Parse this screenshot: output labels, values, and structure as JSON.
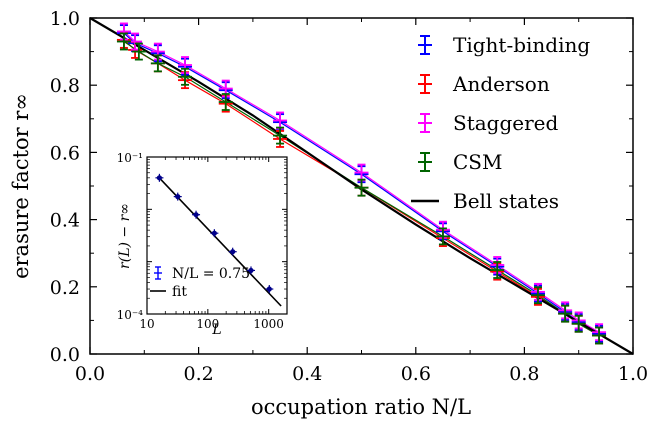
{
  "chart_data": [
    {
      "type": "scatter",
      "title": "",
      "xlabel": "occupation ratio N/L",
      "ylabel": "erasure factor r∞",
      "xlim": [
        0.0,
        1.0
      ],
      "ylim": [
        0.0,
        1.0
      ],
      "xticks": [
        "0.0",
        "0.2",
        "0.4",
        "0.6",
        "0.8",
        "1.0"
      ],
      "yticks": [
        "0.0",
        "0.2",
        "0.4",
        "0.6",
        "0.8",
        "1.0"
      ],
      "legend_position": "top-right",
      "grid": false,
      "series": [
        {
          "name": "Tight-binding",
          "color": "#0000ff",
          "marker": "errorbar",
          "x": [
            0.0625,
            0.083,
            0.125,
            0.175,
            0.25,
            0.35,
            0.5,
            0.65,
            0.75,
            0.825,
            0.875,
            0.9,
            0.9375
          ],
          "y": [
            0.955,
            0.925,
            0.895,
            0.855,
            0.785,
            0.69,
            0.535,
            0.365,
            0.26,
            0.18,
            0.125,
            0.095,
            0.06
          ]
        },
        {
          "name": "Anderson",
          "color": "#ff0000",
          "marker": "errorbar",
          "x": [
            0.0625,
            0.083,
            0.125,
            0.175,
            0.25,
            0.35,
            0.5,
            0.65,
            0.75,
            0.825,
            0.875,
            0.9,
            0.9375
          ],
          "y": [
            0.935,
            0.905,
            0.865,
            0.815,
            0.745,
            0.64,
            0.495,
            0.345,
            0.245,
            0.17,
            0.12,
            0.09,
            0.055
          ]
        },
        {
          "name": "Staggered",
          "color": "#ff00ff",
          "marker": "errorbar",
          "x": [
            0.0625,
            0.083,
            0.125,
            0.175,
            0.25,
            0.35,
            0.5,
            0.65,
            0.75,
            0.825,
            0.875,
            0.9,
            0.9375
          ],
          "y": [
            0.96,
            0.93,
            0.9,
            0.86,
            0.79,
            0.695,
            0.54,
            0.37,
            0.265,
            0.185,
            0.13,
            0.1,
            0.065
          ]
        },
        {
          "name": "CSM",
          "color": "#006400",
          "marker": "errorbar",
          "x": [
            0.0625,
            0.09,
            0.125,
            0.175,
            0.25,
            0.35,
            0.5,
            0.65,
            0.75,
            0.825,
            0.875,
            0.9,
            0.9375
          ],
          "y": [
            0.93,
            0.9,
            0.865,
            0.825,
            0.75,
            0.65,
            0.495,
            0.35,
            0.25,
            0.175,
            0.12,
            0.09,
            0.055
          ]
        },
        {
          "name": "Bell states",
          "color": "#000000",
          "marker": "line",
          "x": [
            0.0,
            0.1,
            0.2,
            0.3,
            0.4,
            0.5,
            0.6,
            0.7,
            0.8,
            0.9,
            1.0
          ],
          "y": [
            1.0,
            0.905,
            0.81,
            0.71,
            0.6,
            0.49,
            0.385,
            0.285,
            0.19,
            0.095,
            0.0
          ]
        }
      ]
    },
    {
      "type": "scatter",
      "title": "",
      "xlabel": "L",
      "ylabel": "r(L) − r∞",
      "xscale": "log",
      "yscale": "log",
      "xlim": [
        10,
        2000
      ],
      "ylim": [
        0.0001,
        0.1
      ],
      "xticks": [
        "10",
        "100",
        "1000"
      ],
      "yticks": [
        "10⁻¹",
        "10⁻⁴"
      ],
      "legend_position": "bottom-left",
      "series": [
        {
          "name": "N/L = 0.75",
          "color": "#00008b",
          "marker": "errorbar",
          "x": [
            16,
            32,
            64,
            128,
            256,
            512,
            1024
          ],
          "y": [
            0.04,
            0.0175,
            0.0079,
            0.0035,
            0.00155,
            0.00068,
            0.0003
          ]
        },
        {
          "name": "fit",
          "color": "#000000",
          "marker": "line",
          "x": [
            15,
            1600
          ],
          "y": [
            0.043,
            0.000142
          ]
        }
      ]
    }
  ]
}
